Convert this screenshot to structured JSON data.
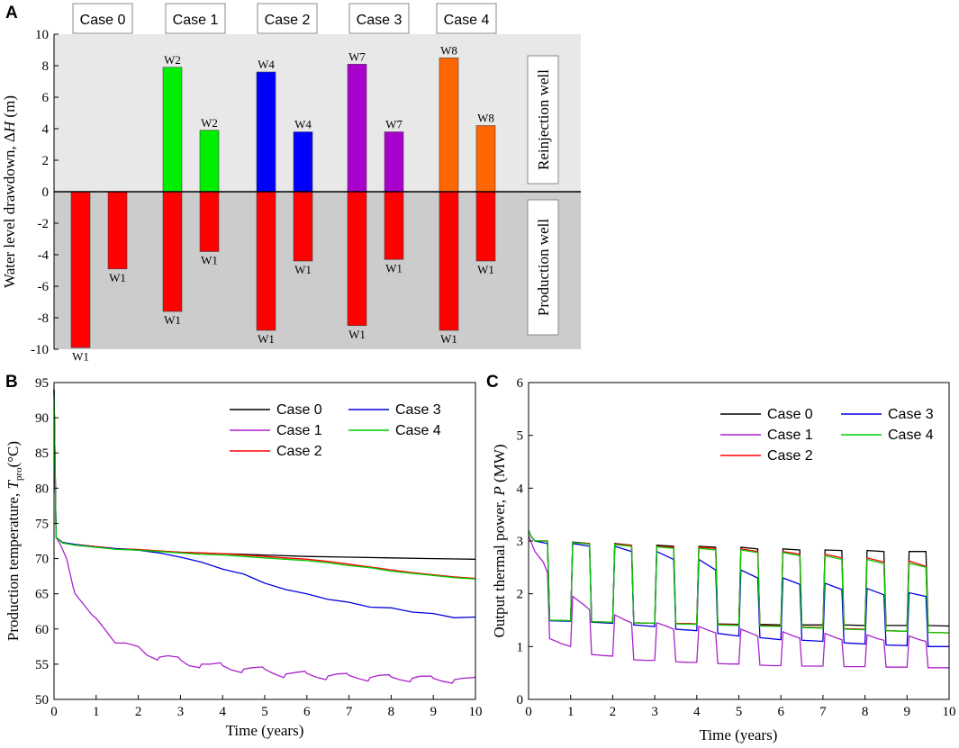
{
  "chart_data": [
    {
      "type": "bar",
      "panel": "A",
      "ylabel_prefix": "Water level drawdown, Δ",
      "ylabel_var": "H",
      "ylabel_unit": " (m)",
      "ylim": [
        -10,
        10
      ],
      "yticks": [
        "10",
        "8",
        "6",
        "4",
        "2",
        "0",
        "-2",
        "-4",
        "-6",
        "-8",
        "-10"
      ],
      "cases": [
        "Case 0",
        "Case 1",
        "Case 2",
        "Case 3",
        "Case 4"
      ],
      "region_labels": {
        "upper": "Reinjection well",
        "lower": "Production well"
      },
      "colors": {
        "production": "#ff0000",
        "case1": "#00ee00",
        "case2": "#0000ff",
        "case3": "#aa00cc",
        "case4": "#ff6600",
        "upper_bg": "#e8e8e8",
        "lower_bg": "#cccccc"
      },
      "bars": [
        {
          "case": 0,
          "slot": 0,
          "value": -9.9,
          "label": "W1",
          "color": "production"
        },
        {
          "case": 0,
          "slot": 1,
          "value": -4.9,
          "label": "W1",
          "color": "production"
        },
        {
          "case": 1,
          "slot": 0,
          "value": 7.9,
          "label": "W2",
          "color": "case1"
        },
        {
          "case": 1,
          "slot": 0,
          "value": -7.6,
          "label": "W1",
          "color": "production"
        },
        {
          "case": 1,
          "slot": 1,
          "value": 3.9,
          "label": "W2",
          "color": "case1"
        },
        {
          "case": 1,
          "slot": 1,
          "value": -3.8,
          "label": "W1",
          "color": "production"
        },
        {
          "case": 2,
          "slot": 0,
          "value": 7.6,
          "label": "W4",
          "color": "case2"
        },
        {
          "case": 2,
          "slot": 0,
          "value": -8.8,
          "label": "W1",
          "color": "production"
        },
        {
          "case": 2,
          "slot": 1,
          "value": 3.8,
          "label": "W4",
          "color": "case2"
        },
        {
          "case": 2,
          "slot": 1,
          "value": -4.4,
          "label": "W1",
          "color": "production"
        },
        {
          "case": 3,
          "slot": 0,
          "value": 8.1,
          "label": "W7",
          "color": "case3"
        },
        {
          "case": 3,
          "slot": 0,
          "value": -8.5,
          "label": "W1",
          "color": "production"
        },
        {
          "case": 3,
          "slot": 1,
          "value": 3.8,
          "label": "W7",
          "color": "case3"
        },
        {
          "case": 3,
          "slot": 1,
          "value": -4.3,
          "label": "W1",
          "color": "production"
        },
        {
          "case": 4,
          "slot": 0,
          "value": 8.5,
          "label": "W8",
          "color": "case4"
        },
        {
          "case": 4,
          "slot": 0,
          "value": -8.8,
          "label": "W1",
          "color": "production"
        },
        {
          "case": 4,
          "slot": 1,
          "value": 4.2,
          "label": "W8",
          "color": "case4"
        },
        {
          "case": 4,
          "slot": 1,
          "value": -4.4,
          "label": "W1",
          "color": "production"
        }
      ]
    },
    {
      "type": "line",
      "panel": "B",
      "xlabel": "Time (years)",
      "ylabel_prefix": "Production temperature, ",
      "ylabel_var": "T",
      "ylabel_sub": "pro",
      "ylabel_unit": "(°C)",
      "xlim": [
        0,
        10
      ],
      "ylim": [
        50,
        95
      ],
      "xticks": [
        "0",
        "1",
        "2",
        "3",
        "4",
        "5",
        "6",
        "7",
        "8",
        "9",
        "10"
      ],
      "yticks": [
        "50",
        "55",
        "60",
        "65",
        "70",
        "75",
        "80",
        "85",
        "90",
        "95"
      ],
      "legend": [
        "Case 0",
        "Case 1",
        "Case 2",
        "Case 3",
        "Case 4"
      ],
      "series": [
        {
          "name": "Case 0",
          "color": "#000000",
          "x": [
            0,
            0.05,
            0.2,
            0.5,
            1,
            1.5,
            2,
            3,
            4,
            5,
            6,
            7,
            8,
            9,
            10
          ],
          "y": [
            94,
            73,
            72.3,
            72,
            71.7,
            71.4,
            71.2,
            70.9,
            70.7,
            70.5,
            70.3,
            70.2,
            70.1,
            70.0,
            69.9
          ]
        },
        {
          "name": "Case 1",
          "color": "#aa22cc",
          "x": [
            0,
            0.05,
            0.15,
            0.3,
            0.45,
            0.5,
            0.7,
            0.9,
            1,
            1.2,
            1.45,
            1.5,
            1.7,
            1.95,
            2,
            2.2,
            2.45,
            2.5,
            2.7,
            2.95,
            3,
            3.2,
            3.45,
            3.5,
            3.7,
            3.95,
            4,
            4.2,
            4.45,
            4.5,
            4.7,
            4.95,
            5,
            5.2,
            5.45,
            5.5,
            5.7,
            5.95,
            6,
            6.2,
            6.45,
            6.5,
            6.7,
            6.95,
            7,
            7.2,
            7.45,
            7.5,
            7.7,
            7.95,
            8,
            8.2,
            8.45,
            8.5,
            8.7,
            8.95,
            9,
            9.2,
            9.45,
            9.5,
            9.7,
            9.95,
            10
          ],
          "y": [
            94,
            73,
            72,
            70,
            66,
            65,
            63.5,
            62,
            61.5,
            60,
            58,
            58,
            58,
            57.6,
            57.5,
            56.3,
            55.6,
            56,
            56.2,
            56,
            55.6,
            54.8,
            54.5,
            55,
            55,
            55.2,
            54.8,
            54.2,
            53.8,
            54.3,
            54.5,
            54.6,
            54.3,
            53.7,
            53.1,
            53.6,
            53.8,
            54,
            53.7,
            53.2,
            52.8,
            53.3,
            53.6,
            53.7,
            53.4,
            53,
            52.6,
            53.1,
            53.4,
            53.5,
            53.2,
            52.8,
            52.5,
            53,
            53.3,
            53.3,
            53,
            52.6,
            52.3,
            52.8,
            53,
            53.1,
            53.2
          ]
        },
        {
          "name": "Case 2",
          "color": "#ff0000",
          "x": [
            0,
            0.05,
            0.2,
            0.5,
            1,
            1.5,
            2,
            2.5,
            3,
            3.5,
            4,
            4.5,
            5,
            5.5,
            6,
            6.5,
            7,
            7.5,
            8,
            8.5,
            9,
            9.5,
            10
          ],
          "y": [
            94,
            73,
            72.3,
            72,
            71.7,
            71.4,
            71.3,
            71.1,
            70.9,
            70.8,
            70.7,
            70.5,
            70.3,
            70.1,
            69.9,
            69.6,
            69.2,
            68.8,
            68.4,
            68,
            67.7,
            67.4,
            67.2
          ]
        },
        {
          "name": "Case 3",
          "color": "#0000dd",
          "x": [
            0,
            0.05,
            0.2,
            0.5,
            1,
            1.5,
            2,
            2.5,
            3,
            3.5,
            4,
            4.5,
            5,
            5.5,
            6,
            6.5,
            7,
            7.5,
            8,
            8.5,
            9,
            9.5,
            10
          ],
          "y": [
            94,
            73,
            72.3,
            72,
            71.6,
            71.4,
            71.2,
            70.8,
            70.2,
            69.5,
            68.5,
            67.8,
            66.5,
            65.6,
            65,
            64.2,
            63.8,
            63.1,
            63,
            62.4,
            62.2,
            61.6,
            61.7
          ]
        },
        {
          "name": "Case 4",
          "color": "#00cc00",
          "x": [
            0,
            0.05,
            0.2,
            0.5,
            1,
            1.5,
            2,
            2.5,
            3,
            3.5,
            4,
            4.5,
            5,
            5.5,
            6,
            6.5,
            7,
            7.5,
            8,
            8.5,
            9,
            9.5,
            10
          ],
          "y": [
            94,
            73,
            72.2,
            71.9,
            71.6,
            71.3,
            71.2,
            71,
            70.8,
            70.6,
            70.5,
            70.3,
            70.1,
            69.9,
            69.7,
            69.4,
            69,
            68.7,
            68.2,
            67.9,
            67.6,
            67.3,
            67.1
          ]
        }
      ]
    },
    {
      "type": "line",
      "panel": "C",
      "xlabel": "Time (years)",
      "ylabel_prefix": "Output thermal power, ",
      "ylabel_var": "P",
      "ylabel_unit": " (MW)",
      "xlim": [
        0,
        10
      ],
      "ylim": [
        0,
        6
      ],
      "xticks": [
        "0",
        "1",
        "2",
        "3",
        "4",
        "5",
        "6",
        "7",
        "8",
        "9",
        "10"
      ],
      "yticks": [
        "0",
        "1",
        "2",
        "3",
        "4",
        "5",
        "6"
      ],
      "legend": [
        "Case 0",
        "Case 1",
        "Case 2",
        "Case 3",
        "Case 4"
      ],
      "series": [
        {
          "name": "Case 0",
          "color": "#000000",
          "x": [
            0,
            0.05,
            0.15,
            0.45,
            0.5,
            1.0,
            1.05,
            1.45,
            1.5,
            2.0,
            2.05,
            2.45,
            2.5,
            3.0,
            3.05,
            3.45,
            3.5,
            4.0,
            4.05,
            4.45,
            4.5,
            5.0,
            5.05,
            5.45,
            5.5,
            6.0,
            6.05,
            6.45,
            6.5,
            7.0,
            7.05,
            7.45,
            7.5,
            8.0,
            8.05,
            8.45,
            8.5,
            9.0,
            9.05,
            9.45,
            9.5,
            10.0
          ],
          "y": [
            3.2,
            3.1,
            3.0,
            3.0,
            1.5,
            1.49,
            2.98,
            2.95,
            1.47,
            1.46,
            2.95,
            2.92,
            1.45,
            1.44,
            2.92,
            2.9,
            1.44,
            1.43,
            2.9,
            2.88,
            1.43,
            1.42,
            2.88,
            2.85,
            1.42,
            1.41,
            2.85,
            2.83,
            1.41,
            1.41,
            2.83,
            2.82,
            1.41,
            1.4,
            2.82,
            2.8,
            1.4,
            1.4,
            2.8,
            2.8,
            1.4,
            1.39
          ]
        },
        {
          "name": "Case 1",
          "color": "#aa22cc",
          "x": [
            0,
            0.05,
            0.15,
            0.35,
            0.45,
            0.5,
            0.8,
            1.0,
            1.05,
            1.3,
            1.45,
            1.5,
            1.8,
            2.0,
            2.05,
            2.3,
            2.45,
            2.5,
            2.8,
            3.0,
            3.05,
            3.3,
            3.45,
            3.5,
            3.8,
            4.0,
            4.05,
            4.3,
            4.45,
            4.5,
            4.8,
            5.0,
            5.05,
            5.3,
            5.45,
            5.5,
            5.8,
            6.0,
            6.05,
            6.3,
            6.45,
            6.5,
            6.8,
            7.0,
            7.05,
            7.3,
            7.45,
            7.5,
            7.8,
            8.0,
            8.05,
            8.3,
            8.45,
            8.5,
            8.8,
            9.0,
            9.05,
            9.3,
            9.45,
            9.5,
            9.8,
            10.0
          ],
          "y": [
            3.1,
            3.0,
            2.8,
            2.6,
            2.4,
            1.15,
            1.05,
            1.0,
            1.95,
            1.8,
            1.7,
            0.85,
            0.83,
            0.82,
            1.6,
            1.5,
            1.45,
            0.75,
            0.74,
            0.74,
            1.45,
            1.38,
            1.33,
            0.71,
            0.7,
            0.7,
            1.38,
            1.3,
            1.26,
            0.68,
            0.67,
            0.67,
            1.33,
            1.25,
            1.2,
            0.65,
            0.64,
            0.64,
            1.28,
            1.2,
            1.16,
            0.63,
            0.63,
            0.63,
            1.25,
            1.17,
            1.13,
            0.62,
            0.62,
            0.62,
            1.22,
            1.15,
            1.12,
            0.61,
            0.61,
            0.61,
            1.2,
            1.13,
            1.1,
            0.6,
            0.6,
            0.6
          ]
        },
        {
          "name": "Case 2",
          "color": "#ff0000",
          "x": [
            0,
            0.05,
            0.15,
            0.45,
            0.5,
            1.0,
            1.05,
            1.45,
            1.5,
            2.0,
            2.05,
            2.45,
            2.5,
            3.0,
            3.05,
            3.45,
            3.5,
            4.0,
            4.05,
            4.45,
            4.5,
            5.0,
            5.05,
            5.45,
            5.5,
            6.0,
            6.05,
            6.45,
            6.5,
            7.0,
            7.05,
            7.45,
            7.5,
            8.0,
            8.05,
            8.45,
            8.5,
            9.0,
            9.05,
            9.45,
            9.5,
            10.0
          ],
          "y": [
            3.2,
            3.1,
            3.0,
            3.0,
            1.5,
            1.49,
            2.97,
            2.95,
            1.47,
            1.46,
            2.94,
            2.92,
            1.45,
            1.44,
            2.9,
            2.88,
            1.44,
            1.43,
            2.88,
            2.86,
            1.42,
            1.41,
            2.85,
            2.8,
            1.4,
            1.39,
            2.8,
            2.75,
            1.37,
            1.36,
            2.75,
            2.68,
            1.34,
            1.33,
            2.68,
            2.6,
            1.3,
            1.29,
            2.62,
            2.52,
            1.27,
            1.26
          ]
        },
        {
          "name": "Case 3",
          "color": "#0000dd",
          "x": [
            0,
            0.05,
            0.15,
            0.45,
            0.5,
            1.0,
            1.05,
            1.45,
            1.5,
            2.0,
            2.05,
            2.45,
            2.5,
            3.0,
            3.05,
            3.45,
            3.5,
            4.0,
            4.05,
            4.45,
            4.5,
            5.0,
            5.05,
            5.45,
            5.5,
            6.0,
            6.05,
            6.45,
            6.5,
            7.0,
            7.05,
            7.45,
            7.5,
            8.0,
            8.05,
            8.45,
            8.5,
            9.0,
            9.05,
            9.45,
            9.5,
            10.0
          ],
          "y": [
            3.2,
            3.1,
            3.0,
            2.95,
            1.49,
            1.48,
            2.95,
            2.9,
            1.46,
            1.44,
            2.9,
            2.8,
            1.41,
            1.38,
            2.8,
            2.65,
            1.33,
            1.3,
            2.65,
            2.45,
            1.25,
            1.2,
            2.45,
            2.3,
            1.17,
            1.13,
            2.3,
            2.18,
            1.12,
            1.1,
            2.2,
            2.08,
            1.07,
            1.05,
            2.1,
            1.98,
            1.03,
            1.02,
            2.02,
            1.95,
            1.0,
            1.0
          ]
        },
        {
          "name": "Case 4",
          "color": "#00cc00",
          "x": [
            0,
            0.05,
            0.15,
            0.45,
            0.5,
            1.0,
            1.05,
            1.45,
            1.5,
            2.0,
            2.05,
            2.45,
            2.5,
            3.0,
            3.05,
            3.45,
            3.5,
            4.0,
            4.05,
            4.45,
            4.5,
            5.0,
            5.05,
            5.45,
            5.5,
            6.0,
            6.05,
            6.45,
            6.5,
            7.0,
            7.05,
            7.45,
            7.5,
            8.0,
            8.05,
            8.45,
            8.5,
            9.0,
            9.05,
            9.45,
            9.5,
            10.0
          ],
          "y": [
            3.2,
            3.1,
            3.0,
            3.0,
            1.5,
            1.49,
            2.97,
            2.94,
            1.47,
            1.46,
            2.93,
            2.9,
            1.45,
            1.44,
            2.89,
            2.86,
            1.43,
            1.42,
            2.86,
            2.83,
            1.41,
            1.4,
            2.83,
            2.78,
            1.39,
            1.38,
            2.78,
            2.72,
            1.36,
            1.35,
            2.72,
            2.65,
            1.33,
            1.32,
            2.65,
            2.57,
            1.3,
            1.29,
            2.58,
            2.5,
            1.27,
            1.26
          ]
        }
      ]
    }
  ]
}
